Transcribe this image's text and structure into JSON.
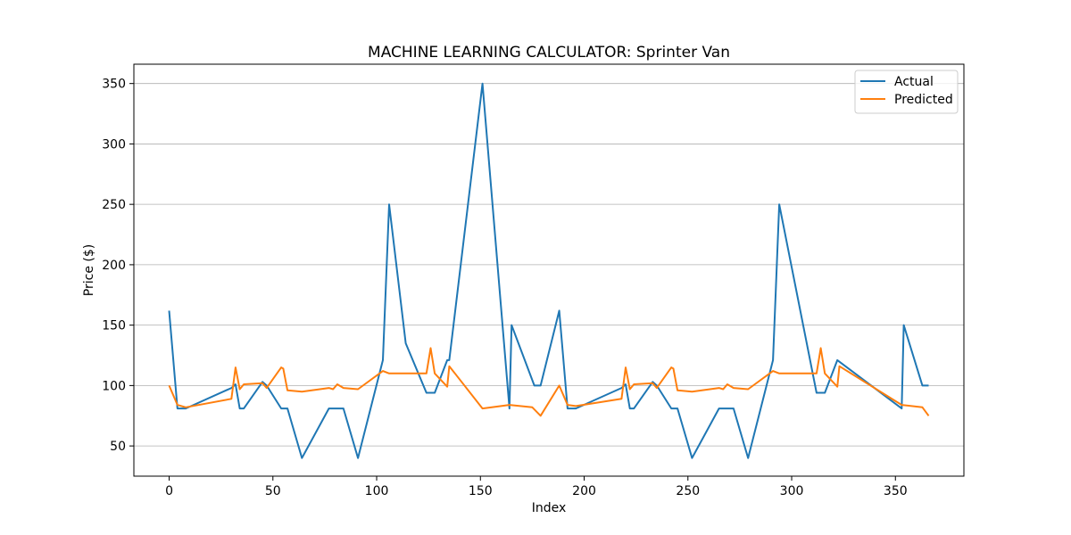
{
  "chart_data": {
    "type": "line",
    "title": "MACHINE LEARNING CALCULATOR: Sprinter Van",
    "xlabel": "Index",
    "ylabel": "Price ($)",
    "xlim": [
      -17,
      383
    ],
    "ylim": [
      25,
      366
    ],
    "xticks": [
      0,
      50,
      100,
      150,
      200,
      250,
      300,
      350
    ],
    "yticks": [
      50,
      100,
      150,
      200,
      250,
      300,
      350
    ],
    "grid": "horizontal",
    "legend_position": "upper right",
    "series": [
      {
        "name": "Actual",
        "color": "#1f77b4",
        "points": [
          [
            0,
            162
          ],
          [
            4,
            81
          ],
          [
            8,
            81
          ],
          [
            30,
            98
          ],
          [
            32,
            101
          ],
          [
            34,
            81
          ],
          [
            36,
            81
          ],
          [
            45,
            103
          ],
          [
            47,
            100
          ],
          [
            54,
            81
          ],
          [
            57,
            81
          ],
          [
            64,
            40
          ],
          [
            77,
            81
          ],
          [
            84,
            81
          ],
          [
            91,
            40
          ],
          [
            103,
            121
          ],
          [
            106,
            250
          ],
          [
            114,
            135
          ],
          [
            124,
            94
          ],
          [
            128,
            94
          ],
          [
            134,
            121
          ],
          [
            135,
            121
          ],
          [
            151,
            350
          ],
          [
            164,
            81
          ],
          [
            165,
            150
          ],
          [
            176,
            100
          ],
          [
            179,
            100
          ],
          [
            188,
            162
          ],
          [
            192,
            81
          ],
          [
            196,
            81
          ],
          [
            218,
            98
          ],
          [
            220,
            101
          ],
          [
            222,
            81
          ],
          [
            224,
            81
          ],
          [
            233,
            103
          ],
          [
            235,
            100
          ],
          [
            242,
            81
          ],
          [
            245,
            81
          ],
          [
            252,
            40
          ],
          [
            265,
            81
          ],
          [
            272,
            81
          ],
          [
            279,
            40
          ],
          [
            291,
            121
          ],
          [
            294,
            250
          ],
          [
            312,
            94
          ],
          [
            316,
            94
          ],
          [
            322,
            121
          ],
          [
            353,
            81
          ],
          [
            354,
            150
          ],
          [
            363,
            100
          ],
          [
            366,
            100
          ]
        ]
      },
      {
        "name": "Predicted",
        "color": "#ff7f0e",
        "points": [
          [
            0,
            100
          ],
          [
            4,
            84
          ],
          [
            8,
            82
          ],
          [
            30,
            89
          ],
          [
            32,
            115
          ],
          [
            34,
            97
          ],
          [
            36,
            101
          ],
          [
            45,
            102
          ],
          [
            47,
            98
          ],
          [
            54,
            115
          ],
          [
            55,
            114
          ],
          [
            57,
            96
          ],
          [
            64,
            95
          ],
          [
            77,
            98
          ],
          [
            79,
            97
          ],
          [
            81,
            101
          ],
          [
            84,
            98
          ],
          [
            91,
            97
          ],
          [
            103,
            112
          ],
          [
            106,
            110
          ],
          [
            114,
            110
          ],
          [
            124,
            110
          ],
          [
            126,
            131
          ],
          [
            128,
            110
          ],
          [
            134,
            99
          ],
          [
            135,
            116
          ],
          [
            151,
            81
          ],
          [
            164,
            84
          ],
          [
            175,
            82
          ],
          [
            179,
            75
          ],
          [
            188,
            100
          ],
          [
            192,
            84
          ],
          [
            196,
            83
          ],
          [
            218,
            89
          ],
          [
            220,
            115
          ],
          [
            222,
            97
          ],
          [
            224,
            101
          ],
          [
            233,
            102
          ],
          [
            235,
            98
          ],
          [
            242,
            115
          ],
          [
            243,
            114
          ],
          [
            245,
            96
          ],
          [
            252,
            95
          ],
          [
            265,
            98
          ],
          [
            267,
            97
          ],
          [
            269,
            101
          ],
          [
            272,
            98
          ],
          [
            279,
            97
          ],
          [
            291,
            112
          ],
          [
            294,
            110
          ],
          [
            312,
            110
          ],
          [
            314,
            131
          ],
          [
            316,
            110
          ],
          [
            322,
            99
          ],
          [
            323,
            116
          ],
          [
            353,
            84
          ],
          [
            363,
            82
          ],
          [
            366,
            75
          ]
        ]
      }
    ]
  }
}
